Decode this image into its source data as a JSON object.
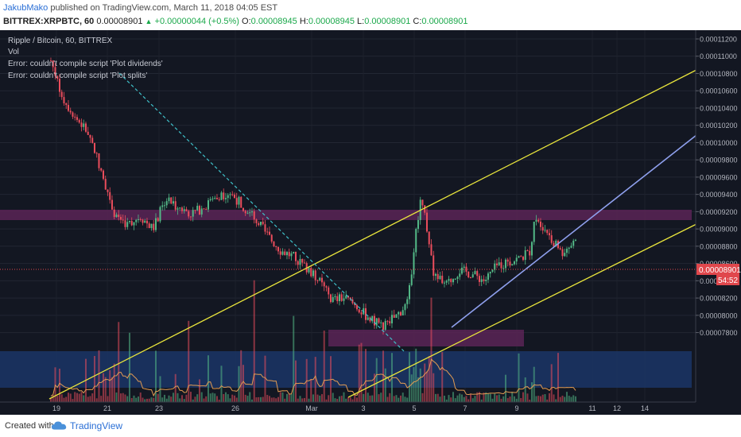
{
  "header": {
    "author": "JakubMako",
    "published": "published on TradingView.com, March 11, 2018 04:05 EST",
    "symbol": "BITTREX:XRPBTC, 60",
    "last": "0.00008901",
    "change": "+0.00000044 (+0.5%)",
    "o_label": "O:",
    "o_value": "0.00008945",
    "h_label": "H:",
    "h_value": "0.00008945",
    "l_label": "L:",
    "l_value": "0.00008901",
    "c_label": "C:",
    "c_value": "0.00008901"
  },
  "legend": {
    "title": "Ripple / Bitcoin, 60, BITTREX",
    "vol": "Vol",
    "error1": "Error: couldn't compile script 'Plot dividends'",
    "error2": "Error: couldn't compile script 'Plot splits'"
  },
  "footer": {
    "created": "Created with",
    "brand": "TradingView"
  },
  "colors": {
    "background": "#131722",
    "up": "#53b987",
    "down": "#eb4d5c",
    "channel": "#e9e53c",
    "trend_blue": "#8fa0ee",
    "dashed": "#3fc1c9",
    "purple_zone": "#5a2456",
    "blue_zone": "#1b3566",
    "price_line": "#e0474c"
  },
  "chart_data": {
    "type": "candlestick",
    "title": "Ripple / Bitcoin, 60, BITTREX",
    "x_tick_labels": [
      "19",
      "21",
      "23",
      "26",
      "Mar",
      "3",
      "5",
      "7",
      "9",
      "11",
      "12",
      "14"
    ],
    "y_tick_labels": [
      "0.00011200",
      "0.00011000",
      "0.00010800",
      "0.00010600",
      "0.00010400",
      "0.00010200",
      "0.00010000",
      "0.00009800",
      "0.00009600",
      "0.00009400",
      "0.00009200",
      "0.00009000",
      "0.00008800",
      "0.00008600",
      "0.00008400",
      "0.00008200",
      "0.00008000",
      "0.00007800"
    ],
    "ylim": [
      7.66e-05,
      0.0001126
    ],
    "last_price": "0.00008901",
    "countdown": "54:52",
    "price_path": [
      [
        "Feb 18 18:00",
        0.0001095
      ],
      [
        "Feb 19 06:00",
        0.000105
      ],
      [
        "Feb 19 18:00",
        0.0001028
      ],
      [
        "Feb 20 06:00",
        0.000101
      ],
      [
        "Feb 20 18:00",
        9.65e-05
      ],
      [
        "Feb 21 06:00",
        9.18e-05
      ],
      [
        "Feb 21 18:00",
        9.05e-05
      ],
      [
        "Feb 22 06:00",
        9.15e-05
      ],
      [
        "Feb 22 18:00",
        9e-05
      ],
      [
        "Feb 23 06:00",
        9.35e-05
      ],
      [
        "Feb 23 18:00",
        9.25e-05
      ],
      [
        "Feb 24 06:00",
        9.18e-05
      ],
      [
        "Feb 24 18:00",
        9.25e-05
      ],
      [
        "Feb 25 06:00",
        9.38e-05
      ],
      [
        "Feb 25 18:00",
        9.42e-05
      ],
      [
        "Feb 26 06:00",
        9.28e-05
      ],
      [
        "Feb 26 18:00",
        9.12e-05
      ],
      [
        "Feb 27 06:00",
        8.92e-05
      ],
      [
        "Feb 27 18:00",
        8.75e-05
      ],
      [
        "Feb 28 06:00",
        8.68e-05
      ],
      [
        "Feb 28 18:00",
        8.55e-05
      ],
      [
        "Mar 01 06:00",
        8.4e-05
      ],
      [
        "Mar 01 18:00",
        8.18e-05
      ],
      [
        "Mar 02 06:00",
        8.2e-05
      ],
      [
        "Mar 02 18:00",
        8.1e-05
      ],
      [
        "Mar 03 06:00",
        7.95e-05
      ],
      [
        "Mar 03 18:00",
        7.88e-05
      ],
      [
        "Mar 04 06:00",
        7.98e-05
      ],
      [
        "Mar 04 18:00",
        8.15e-05
      ],
      [
        "Mar 05 00:00",
        8.85e-05
      ],
      [
        "Mar 05 06:00",
        9.38e-05
      ],
      [
        "Mar 05 12:00",
        9e-05
      ],
      [
        "Mar 05 18:00",
        8.5e-05
      ],
      [
        "Mar 06 06:00",
        8.35e-05
      ],
      [
        "Mar 06 18:00",
        8.52e-05
      ],
      [
        "Mar 07 06:00",
        8.48e-05
      ],
      [
        "Mar 07 18:00",
        8.4e-05
      ],
      [
        "Mar 08 06:00",
        8.58e-05
      ],
      [
        "Mar 08 18:00",
        8.62e-05
      ],
      [
        "Mar 09 06:00",
        8.68e-05
      ],
      [
        "Mar 09 12:00",
        8.72e-05
      ],
      [
        "Mar 09 18:00",
        9.15e-05
      ],
      [
        "Mar 10 06:00",
        8.95e-05
      ],
      [
        "Mar 10 18:00",
        8.72e-05
      ],
      [
        "Mar 11 06:00",
        8.85e-05
      ],
      [
        "Mar 11 09:00",
        8.99e-05
      ]
    ]
  }
}
